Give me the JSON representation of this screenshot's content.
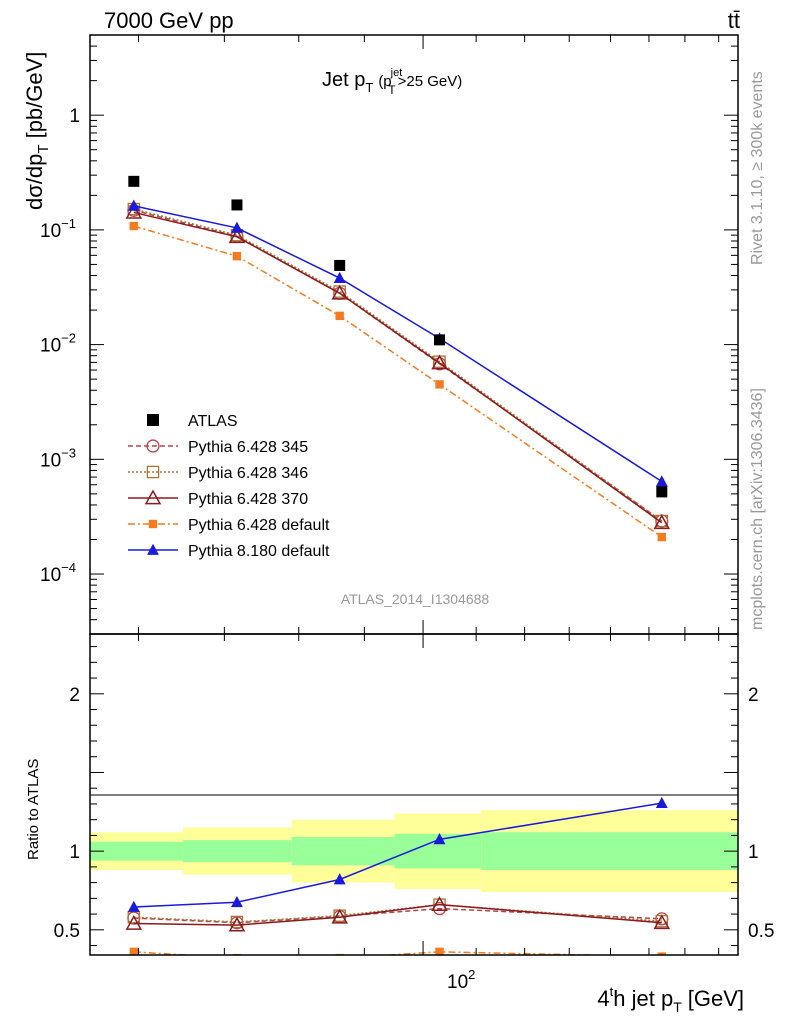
{
  "header": {
    "energy_label": "7000 GeV pp",
    "process_label": "tt̄"
  },
  "plot_title": {
    "main": "Jet p",
    "main_sub": "T",
    "cond_open": "(p",
    "cond_sup": "jet",
    "cond_sub": "T",
    "cond_rest": ">25 GeV)"
  },
  "side_labels": {
    "rivet": "Rivet 3.1.10, ≥ 300k events",
    "mcplots": "mcplots.cern.ch [arXiv:1306.3436]"
  },
  "analysis_id": "ATLAS_2014_I1304688",
  "axes": {
    "ylabel_main": "dσ/dp",
    "ylabel_main_sub": "T",
    "ylabel_main_unit": "[pb/GeV]",
    "ylabel_ratio": "Ratio to ATLAS",
    "xlabel_pre": "4",
    "xlabel_sup": "t",
    "xlabel_mid": "h jet p",
    "xlabel_sub": "T",
    "xlabel_unit": "[GeV]",
    "xtick_base": "10",
    "xtick_exp": "2"
  },
  "chart_data": {
    "type": "scatter",
    "x_scale": "log",
    "xlim": [
      55,
      176
    ],
    "main": {
      "y_scale": "log",
      "ylim": [
        3e-05,
        5.0
      ],
      "yticks": [
        {
          "value": 1,
          "base": "1",
          "exp": ""
        },
        {
          "value": 0.1,
          "base": "10",
          "exp": "−1"
        },
        {
          "value": 0.01,
          "base": "10",
          "exp": "−2"
        },
        {
          "value": 0.001,
          "base": "10",
          "exp": "−3"
        },
        {
          "value": 0.0001,
          "base": "10",
          "exp": "−4"
        }
      ]
    },
    "ratio": {
      "y_scale": "linear",
      "ylim": [
        0.34,
        2.38
      ],
      "yticks": [
        {
          "value": 0.5,
          "label": "0.5"
        },
        {
          "value": 1,
          "label": "1"
        },
        {
          "value": 2,
          "label": "2"
        }
      ],
      "bands": [
        {
          "x0": 55,
          "x1": 65,
          "green": [
            0.94,
            1.06
          ],
          "yellow": [
            0.88,
            1.12
          ]
        },
        {
          "x0": 65,
          "x1": 79,
          "green": [
            0.93,
            1.07
          ],
          "yellow": [
            0.85,
            1.15
          ]
        },
        {
          "x0": 79,
          "x1": 95,
          "green": [
            0.91,
            1.09
          ],
          "yellow": [
            0.8,
            1.2
          ]
        },
        {
          "x0": 95,
          "x1": 111,
          "green": [
            0.89,
            1.11
          ],
          "yellow": [
            0.76,
            1.24
          ]
        },
        {
          "x0": 111,
          "x1": 176,
          "green": [
            0.88,
            1.12
          ],
          "yellow": [
            0.74,
            1.26
          ]
        }
      ]
    },
    "x": [
      59.5,
      71.6,
      86.1,
      103.0,
      153.5
    ],
    "data_series": {
      "name": "ATLAS",
      "values": [
        0.265,
        0.165,
        0.049,
        0.011,
        0.00052
      ],
      "color": "#000000"
    },
    "series": [
      {
        "name": "Pythia 6.428 345",
        "color": "#b5424a",
        "marker": "circle-open",
        "dash": "5,3",
        "values": [
          0.148,
          0.088,
          0.028,
          0.0068,
          0.00029
        ],
        "ratio": [
          0.575,
          0.545,
          0.585,
          0.635,
          0.57
        ]
      },
      {
        "name": "Pythia 6.428 346",
        "color": "#a87436",
        "marker": "square-open",
        "dash": "2,2",
        "values": [
          0.152,
          0.09,
          0.029,
          0.0071,
          0.00029
        ],
        "ratio": [
          0.58,
          0.55,
          0.59,
          0.66,
          0.555
        ]
      },
      {
        "name": "Pythia 6.428 370",
        "color": "#8b1a1f",
        "marker": "triangle-open",
        "dash": "",
        "values": [
          0.142,
          0.087,
          0.028,
          0.0069,
          0.00028
        ],
        "ratio": [
          0.54,
          0.53,
          0.58,
          0.66,
          0.545
        ]
      },
      {
        "name": "Pythia 6.428 default",
        "color": "#f47b20",
        "marker": "square-filled",
        "dash": "7,3,2,3",
        "values": [
          0.108,
          0.059,
          0.0178,
          0.0045,
          0.00021
        ],
        "ratio": [
          0.36,
          0.32,
          0.32,
          0.36,
          0.33
        ]
      },
      {
        "name": "Pythia 8.180 default",
        "color": "#1a1adb",
        "marker": "triangle-filled",
        "dash": "",
        "values": [
          0.162,
          0.104,
          0.038,
          0.0113,
          0.00064
        ],
        "ratio": [
          0.645,
          0.675,
          0.82,
          1.075,
          1.305
        ]
      }
    ]
  }
}
